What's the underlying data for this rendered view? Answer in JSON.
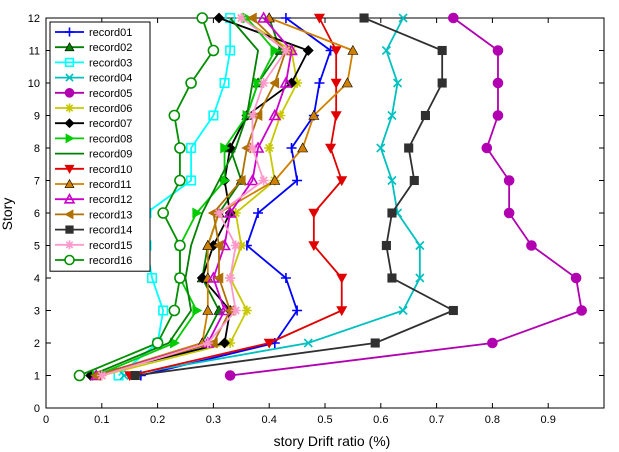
{
  "chart_data": {
    "type": "line",
    "xlabel": "story Drift ratio (%)",
    "ylabel": "Story",
    "xlim": [
      0,
      1
    ],
    "ylim": [
      0,
      12
    ],
    "xticks": [
      "0",
      "0.1",
      "0.2",
      "0.3",
      "0.4",
      "0.5",
      "0.6",
      "0.7",
      "0.8",
      "0.9"
    ],
    "yticks": [
      "0",
      "1",
      "2",
      "3",
      "4",
      "5",
      "6",
      "7",
      "8",
      "9",
      "10",
      "11",
      "12"
    ],
    "grid": false,
    "legend_position": "top-left",
    "y": [
      1,
      2,
      3,
      4,
      5,
      6,
      7,
      8,
      9,
      10,
      11,
      12
    ],
    "series": [
      {
        "name": "record01",
        "color": "#0000ff",
        "marker": "plus",
        "values": [
          0.17,
          0.41,
          0.45,
          0.43,
          0.36,
          0.38,
          0.45,
          0.44,
          0.48,
          0.49,
          0.51,
          0.43
        ]
      },
      {
        "name": "record02",
        "color": "#008000",
        "marker": "triangle-up",
        "values": [
          0.09,
          0.28,
          0.31,
          0.28,
          0.29,
          0.31,
          0.35,
          0.33,
          0.36,
          0.38,
          0.42,
          0.4
        ]
      },
      {
        "name": "record03",
        "color": "#00ffff",
        "marker": "square",
        "values": [
          0.13,
          0.2,
          0.21,
          0.19,
          0.18,
          0.18,
          0.26,
          0.26,
          0.3,
          0.32,
          0.33,
          0.33
        ]
      },
      {
        "name": "record04",
        "color": "#00c0c0",
        "marker": "x",
        "values": [
          0.14,
          0.47,
          0.64,
          0.67,
          0.67,
          0.63,
          0.62,
          0.6,
          0.62,
          0.63,
          0.61,
          0.64
        ]
      },
      {
        "name": "record05",
        "color": "#b000b0",
        "marker": "circle",
        "values": [
          0.33,
          0.8,
          0.96,
          0.95,
          0.87,
          0.83,
          0.83,
          0.79,
          0.81,
          0.81,
          0.81,
          0.73
        ]
      },
      {
        "name": "record06",
        "color": "#c8c800",
        "marker": "asterisk",
        "values": [
          0.1,
          0.33,
          0.36,
          0.33,
          0.35,
          0.34,
          0.41,
          0.4,
          0.42,
          0.45,
          0.44,
          0.35
        ]
      },
      {
        "name": "record07",
        "color": "#000000",
        "marker": "diamond",
        "values": [
          0.08,
          0.32,
          0.33,
          0.28,
          0.3,
          0.33,
          0.32,
          0.33,
          0.36,
          0.44,
          0.47,
          0.31
        ]
      },
      {
        "name": "record08",
        "color": "#00cc00",
        "marker": "triangle-right",
        "values": [
          0.09,
          0.23,
          0.27,
          0.24,
          0.24,
          0.27,
          0.32,
          0.32,
          0.36,
          0.38,
          0.41,
          0.36
        ]
      },
      {
        "name": "record09",
        "color": "#008000",
        "marker": "none",
        "values": [
          0.08,
          0.22,
          0.26,
          0.25,
          0.26,
          0.28,
          0.31,
          0.34,
          0.36,
          0.37,
          0.38,
          0.33
        ]
      },
      {
        "name": "record10",
        "color": "#e00000",
        "marker": "triangle-down",
        "values": [
          0.15,
          0.4,
          0.53,
          0.53,
          0.48,
          0.48,
          0.53,
          0.51,
          0.52,
          0.52,
          0.52,
          0.49
        ]
      },
      {
        "name": "record11",
        "color": "#d08000",
        "marker": "triangle-up",
        "values": [
          0.09,
          0.28,
          0.29,
          0.29,
          0.29,
          0.31,
          0.41,
          0.46,
          0.48,
          0.54,
          0.55,
          0.4
        ]
      },
      {
        "name": "record12",
        "color": "#cc00cc",
        "marker": "triangle-up-open",
        "values": [
          0.09,
          0.29,
          0.32,
          0.3,
          0.32,
          0.33,
          0.37,
          0.38,
          0.41,
          0.43,
          0.44,
          0.39
        ]
      },
      {
        "name": "record13",
        "color": "#b07000",
        "marker": "triangle-left",
        "values": [
          0.09,
          0.3,
          0.33,
          0.31,
          0.31,
          0.3,
          0.35,
          0.36,
          0.38,
          0.41,
          0.43,
          0.37
        ]
      },
      {
        "name": "record14",
        "color": "#303030",
        "marker": "square-filled",
        "values": [
          0.16,
          0.59,
          0.73,
          0.62,
          0.61,
          0.62,
          0.66,
          0.65,
          0.68,
          0.71,
          0.71,
          0.57
        ]
      },
      {
        "name": "record15",
        "color": "#ff99cc",
        "marker": "star",
        "values": [
          0.1,
          0.29,
          0.34,
          0.33,
          0.34,
          0.31,
          0.39,
          0.37,
          0.37,
          0.39,
          0.43,
          0.35
        ]
      },
      {
        "name": "record16",
        "color": "#009000",
        "marker": "circle-open",
        "values": [
          0.06,
          0.2,
          0.23,
          0.24,
          0.24,
          0.21,
          0.24,
          0.24,
          0.23,
          0.26,
          0.3,
          0.28
        ]
      }
    ]
  }
}
